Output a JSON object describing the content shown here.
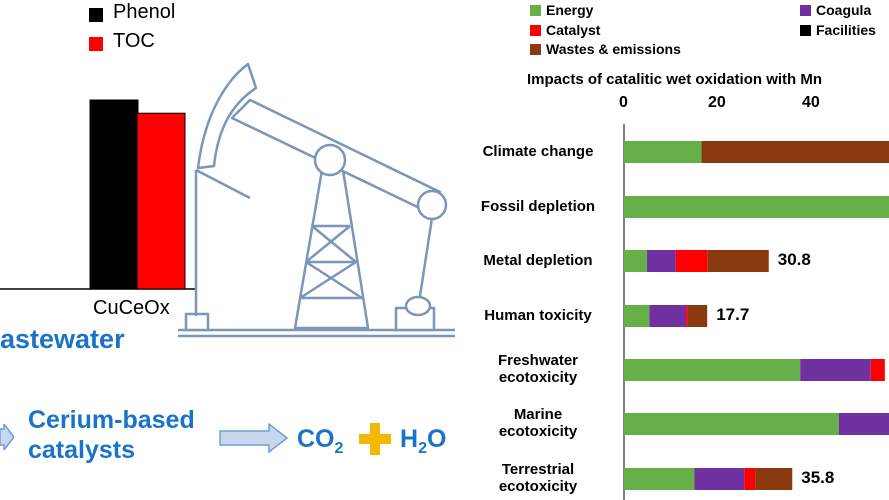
{
  "left_panel": {
    "legend": [
      {
        "label": "Phenol",
        "color": "#000000"
      },
      {
        "label": "TOC",
        "color": "#ff0000"
      }
    ],
    "bar_category": "CuCeOx",
    "wastewater_label": "astewater",
    "process": {
      "catalyst_line1": "Cerium-based",
      "catalyst_line2": "catalysts",
      "co2": "CO",
      "co2_sub": "2",
      "h2o_h": "H",
      "h2o_sub": "2",
      "h2o_o": "O"
    },
    "colors": {
      "accent": "#1a73c8",
      "arrow": "#6f9fd8",
      "plus": "#f5b800",
      "pumpjack": "#7a96b8"
    }
  },
  "chart_data": [
    {
      "type": "bar",
      "categories": [
        "CuCeOx"
      ],
      "series": [
        {
          "name": "Phenol",
          "values": [
            100
          ],
          "color": "#000000"
        },
        {
          "name": "TOC",
          "values": [
            93
          ],
          "color": "#ff0000"
        }
      ],
      "ylim": [
        0,
        100
      ]
    },
    {
      "type": "bar",
      "orientation": "horizontal",
      "title": "Impacts of catalitic wet oxidation with Mn",
      "xlim": [
        0,
        60
      ],
      "xticks": [
        "0",
        "20",
        "40"
      ],
      "legend": [
        {
          "label": "Energy",
          "color": "#66b04a"
        },
        {
          "label": "Coagula",
          "color": "#7030a0"
        },
        {
          "label": "Catalyst",
          "color": "#ff0000"
        },
        {
          "label": "Facilities",
          "color": "#000000"
        },
        {
          "label": "Wastes & emissions",
          "color": "#8b3a0f"
        }
      ],
      "categories": [
        "Climate change",
        "Fossil depletion",
        "Metal depletion",
        "Human toxicity",
        "Freshwater\necotoxicity",
        "Marine\necotoxicity",
        "Terrestrial\necotoxicity"
      ],
      "series": [
        {
          "name": "Energy",
          "color": "#66b04a",
          "values": [
            16.5,
            60,
            4.9,
            5.4,
            37.5,
            45.7,
            15
          ]
        },
        {
          "name": "Coagula",
          "color": "#7030a0",
          "values": [
            0,
            0,
            6.1,
            7.8,
            15,
            15,
            10.6
          ]
        },
        {
          "name": "Catalyst",
          "color": "#ff0000",
          "values": [
            0,
            0,
            6.8,
            0.4,
            3,
            3,
            2.3
          ]
        },
        {
          "name": "Facilities",
          "color": "#000000",
          "values": [
            0,
            0,
            0,
            0,
            0,
            0,
            0
          ]
        },
        {
          "name": "Wastes & emissions",
          "color": "#8b3a0f",
          "values": [
            45,
            0,
            13,
            4.1,
            0,
            0,
            7.9
          ]
        }
      ],
      "data_labels": [
        "",
        "",
        "30.8",
        "17.7",
        "",
        "",
        "35.8"
      ]
    }
  ]
}
